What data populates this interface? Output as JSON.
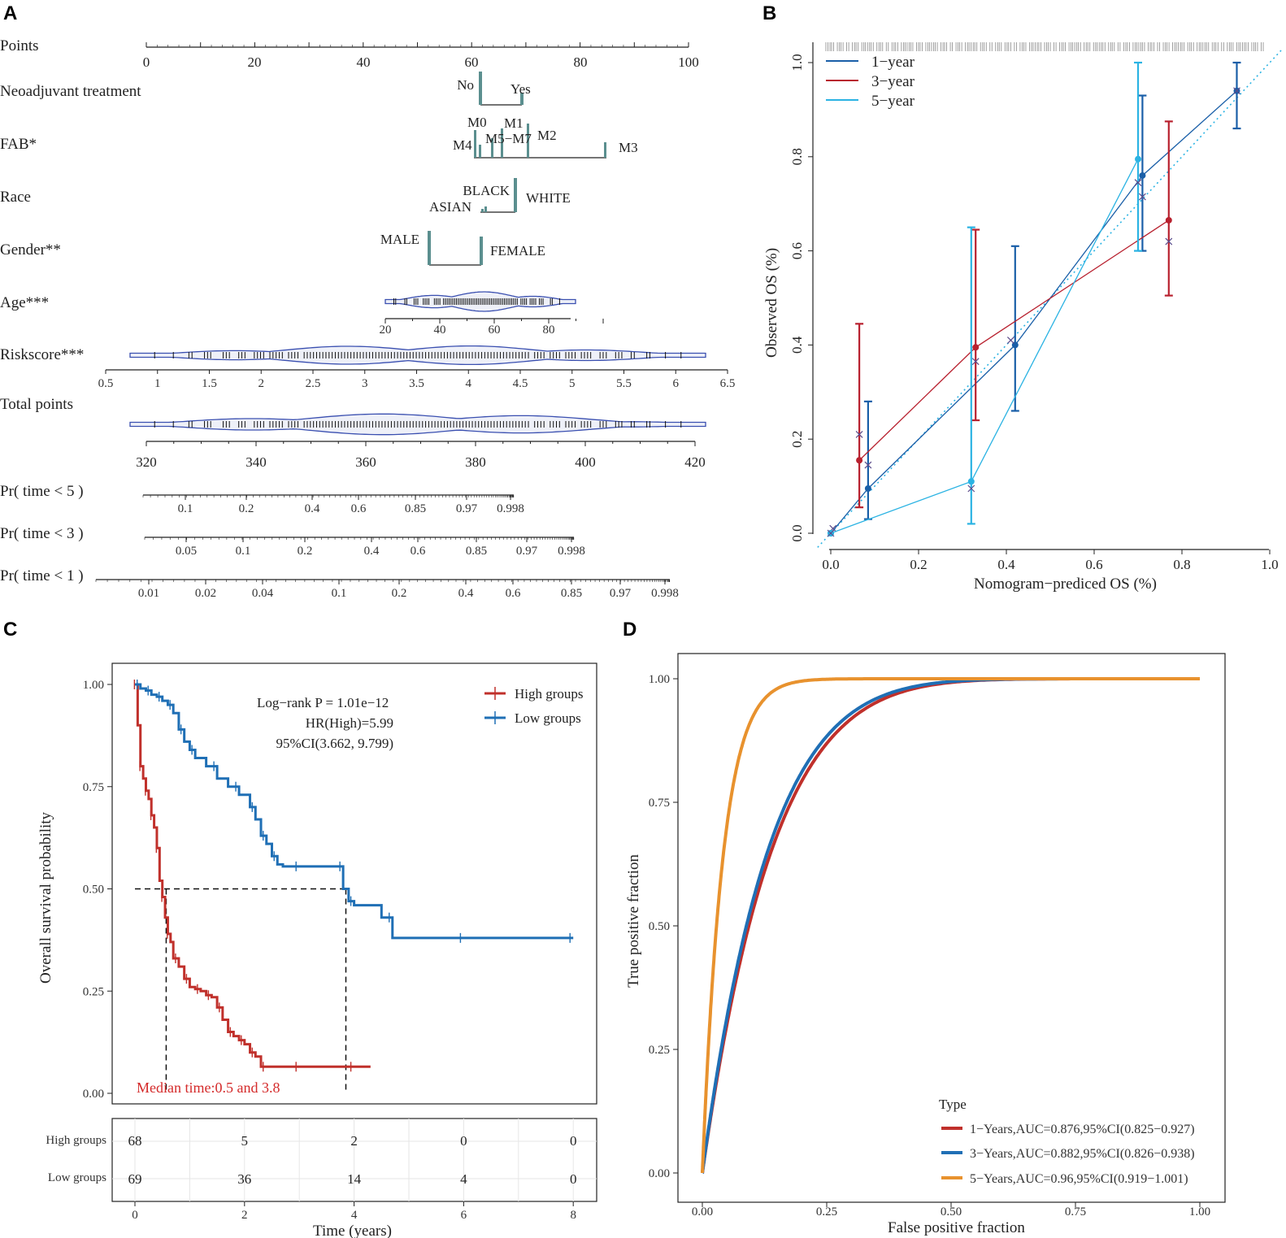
{
  "panels": {
    "A": "A",
    "B": "B",
    "C": "C",
    "D": "D"
  },
  "colors": {
    "teal": "#5b8f8f",
    "violin": "#3a4fb0",
    "red": "#c0302b",
    "blue": "#1f6fb5",
    "light_blue": "#29a9dd",
    "orange": "#e8922e",
    "cal_red": "#b8212f",
    "cal_blue": "#1a5fa8",
    "cal_light": "#2bb3e3"
  },
  "chart_data": [
    {
      "type": "nomogram",
      "panel": "A",
      "points_axis": {
        "label": "Points",
        "ticks": [
          "0",
          "20",
          "40",
          "60",
          "80",
          "100"
        ]
      },
      "variables": [
        {
          "label": "Neoadjuvant treatment",
          "levels": [
            {
              "name": "No",
              "points": 61.6
            },
            {
              "name": "Yes",
              "points": 69.2
            }
          ]
        },
        {
          "label": "FAB*",
          "levels": [
            {
              "name": "M0",
              "points": 60.8
            },
            {
              "name": "M4",
              "points": 61.6
            },
            {
              "name": "M5",
              "points": 63.2
            },
            {
              "name": "M7",
              "points": 65.0
            },
            {
              "name": "M1",
              "points": 70.4
            },
            {
              "name": "M2",
              "points": 70.9
            },
            {
              "name": "M3",
              "points": 84.2
            }
          ],
          "labels": [
            "M0",
            "M1",
            "M4",
            "M5−M7",
            "M2",
            "M3"
          ]
        },
        {
          "label": "Race",
          "levels": [
            {
              "name": "ASIAN",
              "points": 62.0
            },
            {
              "name": "BLACK",
              "points": 62.4
            },
            {
              "name": "WHITE",
              "points": 67.9
            }
          ]
        },
        {
          "label": "Gender**",
          "levels": [
            {
              "name": "MALE",
              "points": 52.2
            },
            {
              "name": "FEMALE",
              "points": 61.6
            }
          ]
        },
        {
          "label": "Age***",
          "ticks": [
            "20",
            "40",
            "60",
            "80"
          ]
        },
        {
          "label": "Riskscore***",
          "ticks": [
            "0.5",
            "1",
            "1.5",
            "2",
            "2.5",
            "3",
            "3.5",
            "4",
            "4.5",
            "5",
            "5.5",
            "6",
            "6.5"
          ]
        }
      ],
      "total_points": {
        "label": "Total points",
        "ticks": [
          "320",
          "340",
          "360",
          "380",
          "400",
          "420"
        ]
      },
      "probability_axes": [
        {
          "label": "Pr( time < 5 )",
          "ticks": [
            "0.1",
            "0.2",
            "0.4",
            "0.6",
            "0.85",
            "0.97",
            "0.998"
          ]
        },
        {
          "label": "Pr( time < 3 )",
          "ticks": [
            "0.05",
            "0.1",
            "0.2",
            "0.4",
            "0.6",
            "0.85",
            "0.97",
            "0.998"
          ]
        },
        {
          "label": "Pr( time < 1 )",
          "ticks": [
            "0.01",
            "0.02",
            "0.04",
            "0.1",
            "0.2",
            "0.4",
            "0.6",
            "0.85",
            "0.97",
            "0.998"
          ]
        }
      ]
    },
    {
      "type": "line",
      "panel": "B",
      "title": "",
      "xlabel": "Nomogram−prediced OS (%)",
      "ylabel": "Observed OS (%)",
      "xlim": [
        0,
        1
      ],
      "ylim": [
        0,
        1
      ],
      "xticks": [
        "0.0",
        "0.2",
        "0.4",
        "0.6",
        "0.8",
        "1.0"
      ],
      "yticks": [
        "0.0",
        "0.2",
        "0.4",
        "0.6",
        "0.8",
        "1.0"
      ],
      "legend": [
        "1−year",
        "3−year",
        "5−year"
      ],
      "series": [
        {
          "name": "1−year",
          "color": "#1a5fa8",
          "x": [
            0.0,
            0.085,
            0.42,
            0.71,
            0.925
          ],
          "y": [
            0.0,
            0.095,
            0.4,
            0.76,
            0.94
          ],
          "lo": [
            0.0,
            0.03,
            0.26,
            0.6,
            0.86
          ],
          "hi": [
            0.0,
            0.28,
            0.61,
            0.93,
            1.0
          ],
          "x_marker": [
            0.005,
            0.085,
            0.41,
            0.71,
            0.925
          ],
          "y_marker": [
            0.01,
            0.145,
            0.41,
            0.715,
            0.94
          ]
        },
        {
          "name": "3−year",
          "color": "#b8212f",
          "x": [
            0.065,
            0.33,
            0.77
          ],
          "y": [
            0.155,
            0.395,
            0.665
          ],
          "lo": [
            0.055,
            0.24,
            0.505
          ],
          "hi": [
            0.445,
            0.645,
            0.875
          ],
          "x_marker": [
            0.065,
            0.33,
            0.77
          ],
          "y_marker": [
            0.21,
            0.365,
            0.62
          ]
        },
        {
          "name": "5−year",
          "color": "#2bb3e3",
          "x": [
            0.0,
            0.32,
            0.7
          ],
          "y": [
            0.0,
            0.11,
            0.795
          ],
          "lo": [
            0.0,
            0.02,
            0.6
          ],
          "hi": [
            0.0,
            0.65,
            1.0
          ],
          "x_marker": [
            0.0,
            0.32,
            0.7
          ],
          "y_marker": [
            0.0,
            0.095,
            0.745
          ]
        }
      ]
    },
    {
      "type": "line",
      "panel": "C",
      "title": "",
      "xlabel": "Time (years)",
      "ylabel": "Overall survival probability",
      "xlim": [
        0,
        8
      ],
      "ylim": [
        0,
        1
      ],
      "xticks": [
        "0",
        "2",
        "4",
        "6",
        "8"
      ],
      "yticks": [
        "0.00",
        "0.25",
        "0.50",
        "0.75",
        "1.00"
      ],
      "legend": [
        "High groups",
        "Low groups"
      ],
      "annotations": {
        "logrank": "Log−rank P = 1.01e−12",
        "hr": "HR(High)=5.99",
        "ci": "95%CI(3.662, 9.799)",
        "median": "Median time:0.5 and 3.8"
      },
      "series": [
        {
          "name": "High groups",
          "color": "#c0302b",
          "x": [
            0,
            0.05,
            0.1,
            0.15,
            0.2,
            0.25,
            0.3,
            0.35,
            0.4,
            0.45,
            0.5,
            0.55,
            0.6,
            0.65,
            0.7,
            0.8,
            0.9,
            1.0,
            1.1,
            1.2,
            1.3,
            1.4,
            1.5,
            1.6,
            1.7,
            1.8,
            1.9,
            2.0,
            2.1,
            2.2,
            2.3,
            2.4,
            2.5,
            3.0,
            3.5,
            4.0,
            4.3
          ],
          "y": [
            1.0,
            0.9,
            0.8,
            0.77,
            0.74,
            0.72,
            0.68,
            0.65,
            0.6,
            0.52,
            0.48,
            0.43,
            0.39,
            0.37,
            0.33,
            0.31,
            0.28,
            0.26,
            0.255,
            0.25,
            0.24,
            0.235,
            0.21,
            0.18,
            0.15,
            0.14,
            0.13,
            0.12,
            0.1,
            0.09,
            0.065,
            0.065,
            0.065,
            0.065,
            0.065,
            0.065,
            0.065
          ]
        },
        {
          "name": "Low groups",
          "color": "#1f6fb5",
          "x": [
            0,
            0.1,
            0.2,
            0.3,
            0.4,
            0.5,
            0.6,
            0.7,
            0.8,
            0.9,
            1.0,
            1.1,
            1.3,
            1.5,
            1.7,
            1.9,
            2.1,
            2.2,
            2.3,
            2.4,
            2.5,
            2.6,
            2.7,
            3.0,
            3.5,
            3.8,
            3.9,
            4.0,
            4.5,
            4.7,
            5.0,
            6.0,
            7.0,
            8.0
          ],
          "y": [
            1.0,
            0.99,
            0.985,
            0.975,
            0.97,
            0.96,
            0.95,
            0.93,
            0.89,
            0.86,
            0.84,
            0.82,
            0.8,
            0.77,
            0.75,
            0.73,
            0.7,
            0.67,
            0.63,
            0.61,
            0.58,
            0.56,
            0.555,
            0.555,
            0.555,
            0.5,
            0.47,
            0.46,
            0.43,
            0.38,
            0.38,
            0.38,
            0.38,
            0.38
          ]
        }
      ],
      "risk_table": {
        "rows": [
          {
            "label": "High groups",
            "values": [
              "68",
              "5",
              "2",
              "0",
              "0"
            ]
          },
          {
            "label": "Low groups",
            "values": [
              "69",
              "36",
              "14",
              "4",
              "0"
            ]
          }
        ]
      }
    },
    {
      "type": "line",
      "panel": "D",
      "title": "",
      "xlabel": "False positive fraction",
      "ylabel": "True positive fraction",
      "xlim": [
        0,
        1
      ],
      "ylim": [
        0,
        1
      ],
      "xticks": [
        "0.00",
        "0.25",
        "0.50",
        "0.75",
        "1.00"
      ],
      "yticks": [
        "0.00",
        "0.25",
        "0.50",
        "0.75",
        "1.00"
      ],
      "legend_title": "Type",
      "legend": [
        "1−Years,AUC=0.876,95%CI(0.825−0.927)",
        "3−Years,AUC=0.882,95%CI(0.826−0.938)",
        "5−Years,AUC=0.96,95%CI(0.919−1.001)"
      ],
      "series": [
        {
          "name": "1−Years",
          "color": "#c0302b",
          "auc": 0.876
        },
        {
          "name": "3−Years",
          "color": "#1f6fb5",
          "auc": 0.882
        },
        {
          "name": "5−Years",
          "color": "#e8922e",
          "auc": 0.96
        }
      ]
    }
  ]
}
